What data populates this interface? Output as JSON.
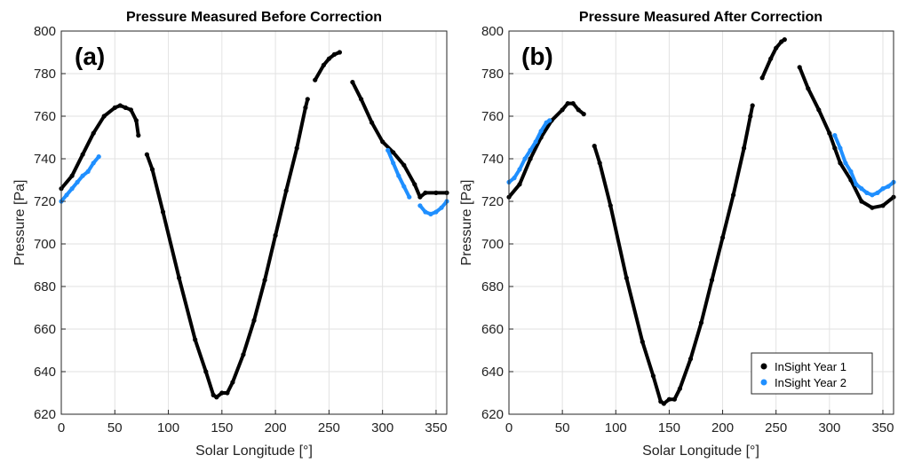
{
  "colors": {
    "year1": "#000000",
    "year2": "#1f8fff",
    "grid": "#e2e2e2",
    "axis": "#262626"
  },
  "legend": {
    "items": [
      "InSight Year 1",
      "InSight Year 2"
    ],
    "placement": "bottom-right of panel (b)"
  },
  "chart_data": [
    {
      "type": "scatter",
      "panel_label": "(a)",
      "title": "Pressure Measured  Before Correction",
      "xlabel": "Solar Longitude [°]",
      "ylabel": "Pressure [Pa]",
      "xlim": [
        0,
        360
      ],
      "ylim": [
        620,
        800
      ],
      "xticks": [
        "0",
        "50",
        "100",
        "150",
        "200",
        "250",
        "300",
        "350"
      ],
      "yticks": [
        "620",
        "640",
        "660",
        "680",
        "700",
        "720",
        "740",
        "760",
        "780",
        "800"
      ],
      "grid": true,
      "series": [
        {
          "name": "InSight Year 1",
          "color": "#000000",
          "segments": [
            [
              [
                0,
                726
              ],
              [
                10,
                732
              ],
              [
                20,
                742
              ],
              [
                30,
                752
              ],
              [
                40,
                760
              ],
              [
                50,
                764
              ],
              [
                55,
                765
              ],
              [
                60,
                764
              ],
              [
                65,
                763
              ],
              [
                70,
                758
              ],
              [
                72,
                751
              ]
            ],
            [
              [
                80,
                742
              ],
              [
                85,
                735
              ],
              [
                95,
                715
              ],
              [
                110,
                684
              ],
              [
                125,
                655
              ],
              [
                135,
                640
              ],
              [
                142,
                629
              ],
              [
                145,
                628
              ],
              [
                150,
                630
              ],
              [
                155,
                630
              ],
              [
                160,
                635
              ],
              [
                170,
                648
              ],
              [
                180,
                664
              ],
              [
                190,
                683
              ],
              [
                200,
                704
              ],
              [
                210,
                725
              ],
              [
                220,
                745
              ],
              [
                228,
                764
              ],
              [
                230,
                768
              ]
            ],
            [
              [
                237,
                777
              ],
              [
                245,
                784
              ],
              [
                250,
                787
              ],
              [
                255,
                789
              ],
              [
                260,
                790
              ]
            ],
            [
              [
                272,
                776
              ],
              [
                280,
                768
              ],
              [
                290,
                757
              ],
              [
                300,
                748
              ],
              [
                310,
                743
              ],
              [
                320,
                737
              ],
              [
                330,
                728
              ],
              [
                335,
                722
              ],
              [
                340,
                724
              ],
              [
                350,
                724
              ],
              [
                360,
                724
              ]
            ]
          ]
        },
        {
          "name": "InSight Year 2",
          "color": "#1f8fff",
          "segments": [
            [
              [
                0,
                720
              ],
              [
                5,
                723
              ],
              [
                10,
                726
              ],
              [
                15,
                729
              ],
              [
                20,
                732
              ],
              [
                25,
                734
              ],
              [
                30,
                738
              ],
              [
                35,
                741
              ]
            ],
            [
              [
                305,
                744
              ],
              [
                310,
                738
              ],
              [
                315,
                732
              ],
              [
                320,
                727
              ],
              [
                325,
                722
              ]
            ],
            [
              [
                335,
                718
              ],
              [
                340,
                715
              ],
              [
                345,
                714
              ],
              [
                350,
                715
              ],
              [
                355,
                717
              ],
              [
                360,
                720
              ]
            ]
          ]
        }
      ]
    },
    {
      "type": "scatter",
      "panel_label": "(b)",
      "title": "Pressure Measured  After Correction",
      "xlabel": "Solar Longitude [°]",
      "ylabel": "Pressure [Pa]",
      "xlim": [
        0,
        360
      ],
      "ylim": [
        620,
        800
      ],
      "xticks": [
        "0",
        "50",
        "100",
        "150",
        "200",
        "250",
        "300",
        "350"
      ],
      "yticks": [
        "620",
        "640",
        "660",
        "680",
        "700",
        "720",
        "740",
        "760",
        "780",
        "800"
      ],
      "grid": true,
      "series": [
        {
          "name": "InSight Year 1",
          "color": "#000000",
          "segments": [
            [
              [
                0,
                722
              ],
              [
                10,
                728
              ],
              [
                20,
                740
              ],
              [
                30,
                750
              ],
              [
                40,
                758
              ],
              [
                50,
                763
              ],
              [
                55,
                766
              ],
              [
                60,
                766
              ],
              [
                65,
                763
              ],
              [
                70,
                761
              ]
            ],
            [
              [
                80,
                746
              ],
              [
                85,
                738
              ],
              [
                95,
                718
              ],
              [
                110,
                684
              ],
              [
                125,
                654
              ],
              [
                135,
                638
              ],
              [
                142,
                626
              ],
              [
                145,
                625
              ],
              [
                150,
                627
              ],
              [
                155,
                627
              ],
              [
                160,
                632
              ],
              [
                170,
                646
              ],
              [
                180,
                663
              ],
              [
                190,
                683
              ],
              [
                200,
                703
              ],
              [
                210,
                723
              ],
              [
                220,
                745
              ],
              [
                226,
                760
              ],
              [
                228,
                765
              ]
            ],
            [
              [
                237,
                778
              ],
              [
                245,
                787
              ],
              [
                250,
                792
              ],
              [
                255,
                795
              ],
              [
                258,
                796
              ]
            ],
            [
              [
                272,
                783
              ],
              [
                280,
                773
              ],
              [
                290,
                763
              ],
              [
                300,
                752
              ],
              [
                305,
                745
              ],
              [
                310,
                738
              ],
              [
                320,
                730
              ],
              [
                330,
                720
              ],
              [
                340,
                717
              ],
              [
                350,
                718
              ],
              [
                360,
                722
              ]
            ]
          ]
        },
        {
          "name": "InSight Year 2",
          "color": "#1f8fff",
          "segments": [
            [
              [
                0,
                729
              ],
              [
                5,
                731
              ],
              [
                10,
                735
              ],
              [
                15,
                740
              ],
              [
                20,
                744
              ],
              [
                25,
                748
              ],
              [
                30,
                753
              ],
              [
                35,
                757
              ],
              [
                38,
                758
              ]
            ],
            [
              [
                305,
                751
              ],
              [
                310,
                745
              ],
              [
                315,
                738
              ],
              [
                320,
                734
              ],
              [
                325,
                728
              ],
              [
                330,
                726
              ],
              [
                335,
                724
              ],
              [
                340,
                723
              ],
              [
                345,
                724
              ],
              [
                350,
                726
              ],
              [
                355,
                727
              ],
              [
                360,
                729
              ]
            ]
          ]
        }
      ]
    }
  ]
}
